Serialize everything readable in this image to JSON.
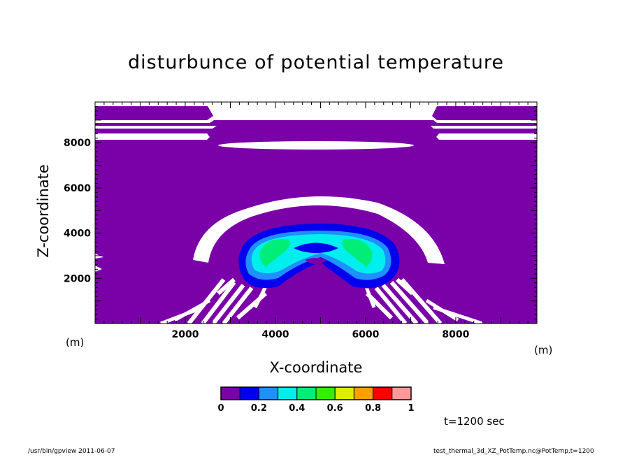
{
  "chart_data": {
    "type": "heatmap",
    "title": "disturbunce of potential temperature",
    "xlabel": "X-coordinate",
    "ylabel": "Z-coordinate",
    "xunit": "(m)",
    "yunit": "(m)",
    "xlim": [
      0,
      9800
    ],
    "ylim": [
      0,
      9800
    ],
    "xticks": [
      2000,
      4000,
      6000,
      8000
    ],
    "yticks": [
      2000,
      4000,
      6000,
      8000
    ],
    "xtick_labels": [
      "2000",
      "4000",
      "6000",
      "8000"
    ],
    "ytick_labels": [
      "2000",
      "4000",
      "6000",
      "8000"
    ],
    "colorbar": {
      "levels": [
        0,
        0.1,
        0.2,
        0.3,
        0.4,
        0.5,
        0.6,
        0.7,
        0.8,
        0.9,
        1
      ],
      "labels": [
        "0",
        "0.2",
        "0.4",
        "0.6",
        "0.8",
        "1"
      ],
      "label_values": [
        0,
        0.2,
        0.4,
        0.6,
        0.8,
        1
      ],
      "colors": [
        "#7a00a8",
        "#0000ee",
        "#1e90ff",
        "#00eeee",
        "#00ee77",
        "#33ee00",
        "#ddee00",
        "#ffa000",
        "#ff0000",
        "#ff9999"
      ]
    },
    "background_level_color": "#7a00a8",
    "shading": [
      {
        "name": "thermal-core",
        "cx": 5000,
        "cz": 3000,
        "levels": [
          0.1,
          0.2,
          0.3,
          0.4
        ]
      }
    ]
  },
  "annotations": {
    "time": "t=1200 sec",
    "footer_left": "/usr/bin/gpview   2011-06-07",
    "footer_right": "test_thermal_3d_XZ_PotTemp.nc@PotTemp,t=1200"
  }
}
